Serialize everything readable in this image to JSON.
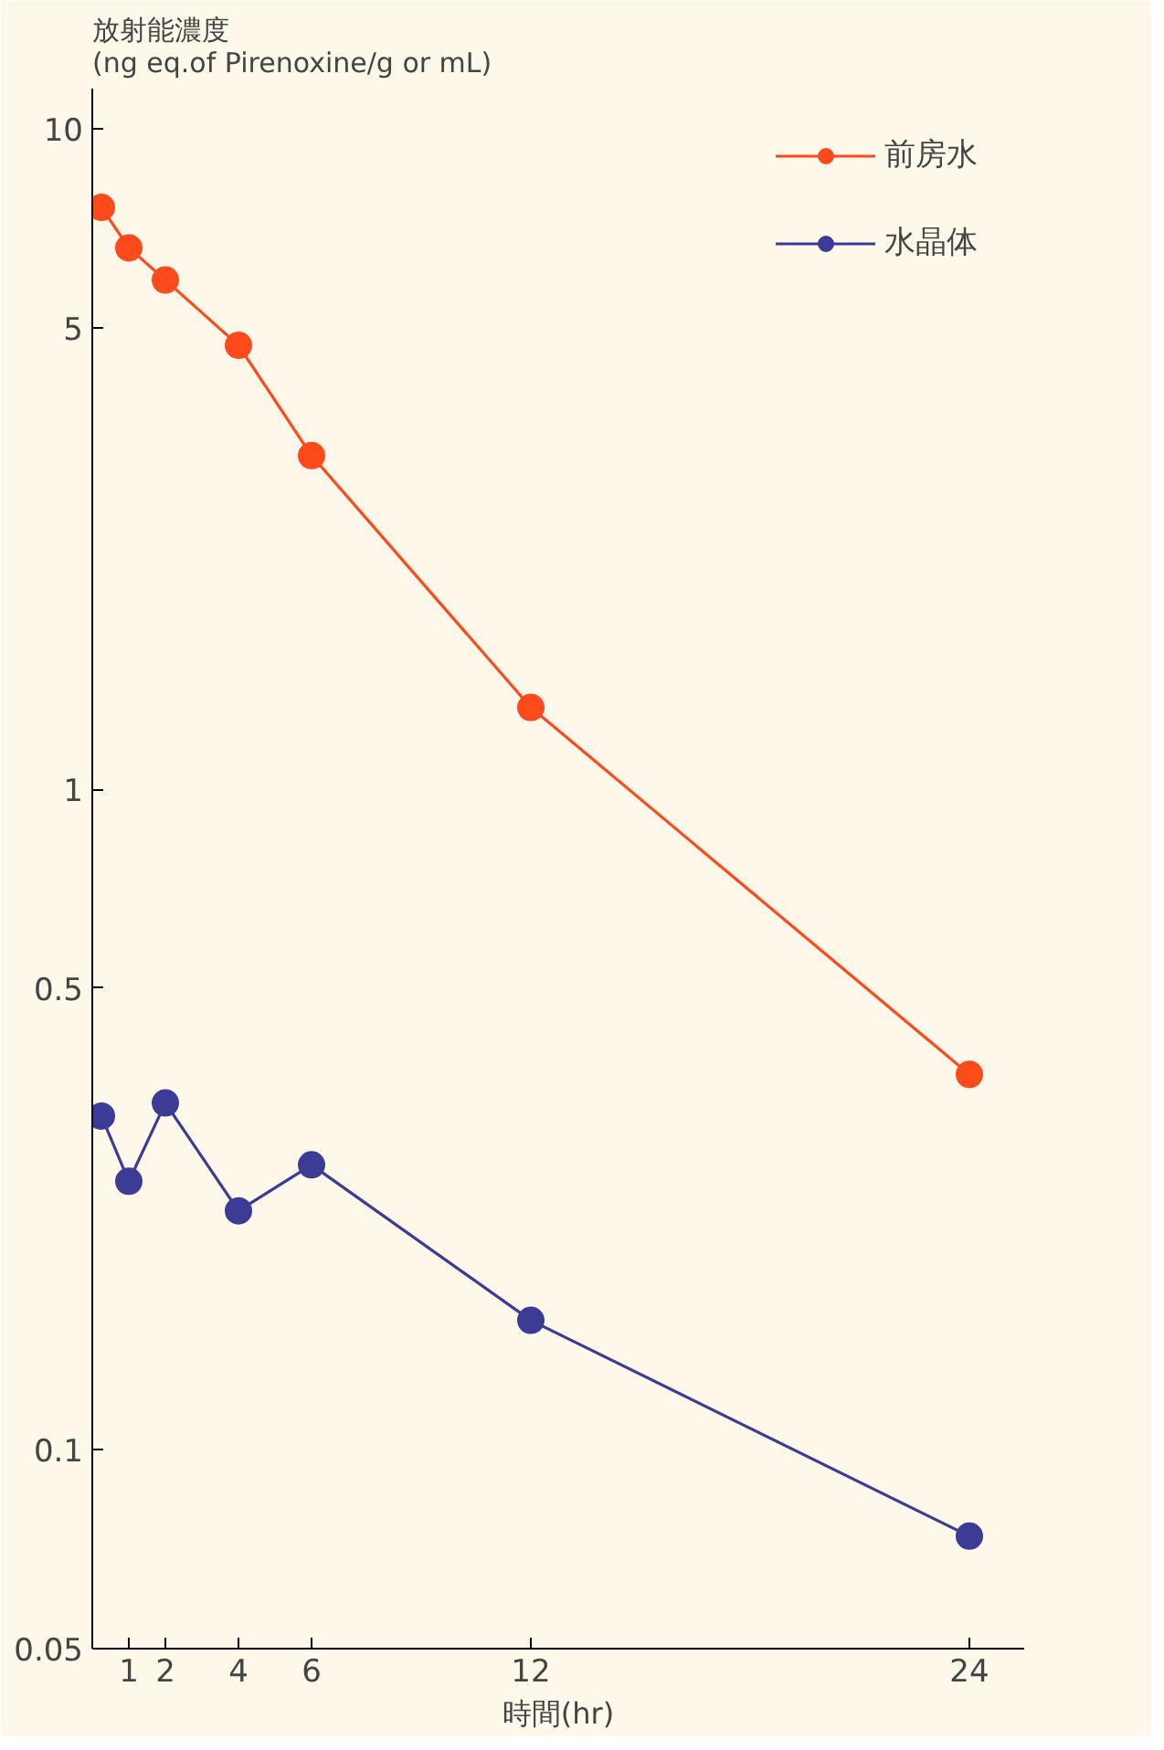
{
  "chart_data": {
    "type": "line",
    "ylabel": "放射能濃度\n(ng eq.of Pirenoxine/g or mL)",
    "xlabel": "時間(hr)",
    "log": "y",
    "ylim": [
      0.05,
      11.5
    ],
    "yticks": [
      0.05,
      0.1,
      0.5,
      1,
      5,
      10
    ],
    "xlim": [
      0,
      25.5
    ],
    "xticks": [
      1,
      2,
      4,
      6,
      12,
      24
    ],
    "grid": false,
    "legend": "top right",
    "marker": "circle",
    "line_style": "solid",
    "series": [
      {
        "name": "前房水",
        "color": "#ff4a1c",
        "x": [
          0.25,
          1,
          2,
          4,
          6,
          12,
          24
        ],
        "values": [
          7.6,
          6.6,
          5.9,
          4.7,
          3.2,
          1.33,
          0.37
        ]
      },
      {
        "name": "水晶体",
        "color": "#3c3c96",
        "x": [
          0.25,
          1,
          2,
          4,
          6,
          12,
          24
        ],
        "values": [
          0.32,
          0.255,
          0.335,
          0.23,
          0.27,
          0.157,
          0.074
        ]
      }
    ]
  }
}
